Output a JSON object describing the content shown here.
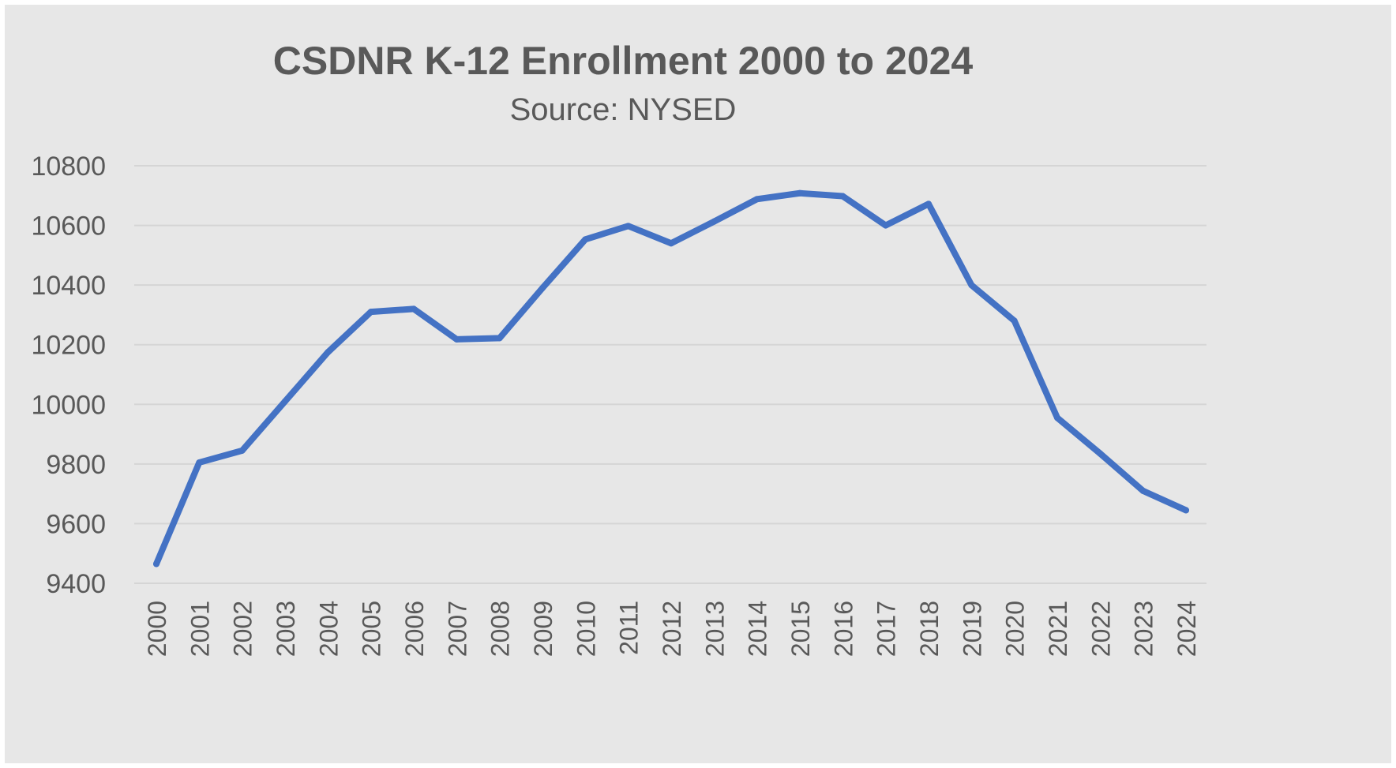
{
  "chart_data": {
    "type": "line",
    "title": "CSDNR K-12 Enrollment 2000 to 2024",
    "subtitle": "Source: NYSED",
    "xlabel": "",
    "ylabel": "",
    "ylim": [
      9400,
      10800
    ],
    "ytick_step": 200,
    "yticks": [
      "9400",
      "9600",
      "9800",
      "10000",
      "10200",
      "10400",
      "10600",
      "10800"
    ],
    "categories": [
      "2000",
      "2001",
      "2002",
      "2003",
      "2004",
      "2005",
      "2006",
      "2007",
      "2008",
      "2009",
      "2010",
      "2011",
      "2012",
      "2013",
      "2014",
      "2015",
      "2016",
      "2017",
      "2018",
      "2019",
      "2020",
      "2021",
      "2022",
      "2023",
      "2024"
    ],
    "series": [
      {
        "name": "K-12 Enrollment",
        "color": "#4472c4",
        "values": [
          9465,
          9805,
          9845,
          10010,
          10175,
          10310,
          10320,
          10218,
          10222,
          10390,
          10553,
          10598,
          10540,
          10613,
          10688,
          10708,
          10698,
          10600,
          10672,
          10400,
          10280,
          9955,
          9835,
          9710,
          9645
        ]
      }
    ],
    "grid": true,
    "legend": "none"
  },
  "colors": {
    "background": "#e7e7e7",
    "gridline": "#d5d5d5",
    "title_text": "#595959",
    "tick_text": "#595959"
  }
}
